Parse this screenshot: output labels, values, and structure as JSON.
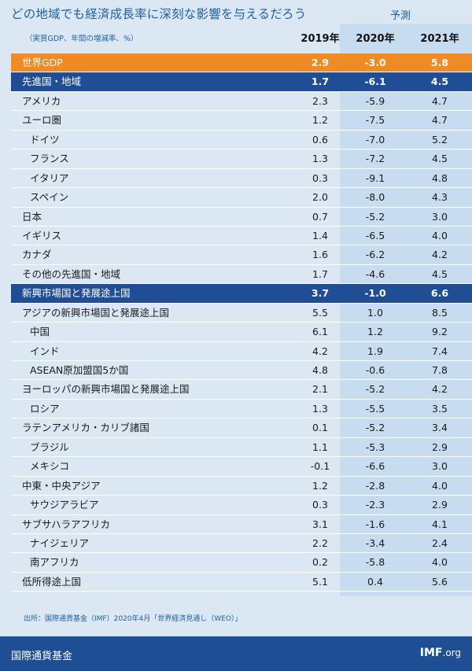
{
  "title": "どの地域でも経済成長率に深刻な影響を与えるだろう",
  "forecast_label": "予測",
  "unit_note": "（実質GDP、年間の増減率、%）",
  "years": [
    "2019年",
    "2020年",
    "2021年"
  ],
  "rows": [
    {
      "label": "世界GDP",
      "v2019": "2.9",
      "v2020": "-3.0",
      "v2021": "5.8",
      "style": "orange"
    },
    {
      "label": "先進国・地域",
      "v2019": "1.7",
      "v2020": "-6.1",
      "v2021": "4.5",
      "style": "blue"
    },
    {
      "label": "アメリカ",
      "v2019": "2.3",
      "v2020": "-5.9",
      "v2021": "4.7",
      "style": ""
    },
    {
      "label": "ユーロ圏",
      "v2019": "1.2",
      "v2020": "-7.5",
      "v2021": "4.7",
      "style": ""
    },
    {
      "label": "ドイツ",
      "v2019": "0.6",
      "v2020": "-7.0",
      "v2021": "5.2",
      "style": "sub"
    },
    {
      "label": "フランス",
      "v2019": "1.3",
      "v2020": "-7.2",
      "v2021": "4.5",
      "style": "sub"
    },
    {
      "label": "イタリア",
      "v2019": "0.3",
      "v2020": "-9.1",
      "v2021": "4.8",
      "style": "sub"
    },
    {
      "label": "スペイン",
      "v2019": "2.0",
      "v2020": "-8.0",
      "v2021": "4.3",
      "style": "sub"
    },
    {
      "label": "日本",
      "v2019": "0.7",
      "v2020": "-5.2",
      "v2021": "3.0",
      "style": ""
    },
    {
      "label": "イギリス",
      "v2019": "1.4",
      "v2020": "-6.5",
      "v2021": "4.0",
      "style": ""
    },
    {
      "label": "カナダ",
      "v2019": "1.6",
      "v2020": "-6.2",
      "v2021": "4.2",
      "style": ""
    },
    {
      "label": "その他の先進国・地域",
      "v2019": "1.7",
      "v2020": "-4.6",
      "v2021": "4.5",
      "style": ""
    },
    {
      "label": "新興市場国と発展途上国",
      "v2019": "3.7",
      "v2020": "-1.0",
      "v2021": "6.6",
      "style": "blue"
    },
    {
      "label": "アジアの新興市場国と発展途上国",
      "v2019": "5.5",
      "v2020": "1.0",
      "v2021": "8.5",
      "style": ""
    },
    {
      "label": "中国",
      "v2019": "6.1",
      "v2020": "1.2",
      "v2021": "9.2",
      "style": "sub"
    },
    {
      "label": "インド",
      "v2019": "4.2",
      "v2020": "1.9",
      "v2021": "7.4",
      "style": "sub"
    },
    {
      "label": "ASEAN原加盟国5か国",
      "v2019": "4.8",
      "v2020": "-0.6",
      "v2021": "7.8",
      "style": "sub"
    },
    {
      "label": "ヨーロッパの新興市場国と発展途上国",
      "v2019": "2.1",
      "v2020": "-5.2",
      "v2021": "4.2",
      "style": ""
    },
    {
      "label": "ロシア",
      "v2019": "1.3",
      "v2020": "-5.5",
      "v2021": "3.5",
      "style": "sub"
    },
    {
      "label": "ラテンアメリカ・カリブ諸国",
      "v2019": "0.1",
      "v2020": "-5.2",
      "v2021": "3.4",
      "style": ""
    },
    {
      "label": "ブラジル",
      "v2019": "1.1",
      "v2020": "-5.3",
      "v2021": "2.9",
      "style": "sub"
    },
    {
      "label": "メキシコ",
      "v2019": "-0.1",
      "v2020": "-6.6",
      "v2021": "3.0",
      "style": "sub"
    },
    {
      "label": "中東・中央アジア",
      "v2019": "1.2",
      "v2020": "-2.8",
      "v2021": "4.0",
      "style": ""
    },
    {
      "label": "サウジアラビア",
      "v2019": "0.3",
      "v2020": "-2.3",
      "v2021": "2.9",
      "style": "sub"
    },
    {
      "label": "サブサハラアフリカ",
      "v2019": "3.1",
      "v2020": "-1.6",
      "v2021": "4.1",
      "style": ""
    },
    {
      "label": "ナイジェリア",
      "v2019": "2.2",
      "v2020": "-3.4",
      "v2021": "2.4",
      "style": "sub"
    },
    {
      "label": "南アフリカ",
      "v2019": "0.2",
      "v2020": "-5.8",
      "v2021": "4.0",
      "style": "sub"
    },
    {
      "label": "低所得途上国",
      "v2019": "5.1",
      "v2020": "0.4",
      "v2021": "5.6",
      "style": ""
    }
  ],
  "source": "出所：国際通貨基金（IMF）2020年4月「世界経済見通し（WEO）」",
  "footer": {
    "org_name": "国際通貨基金",
    "logo_bold": "IMF",
    "logo_suffix": ".org"
  }
}
